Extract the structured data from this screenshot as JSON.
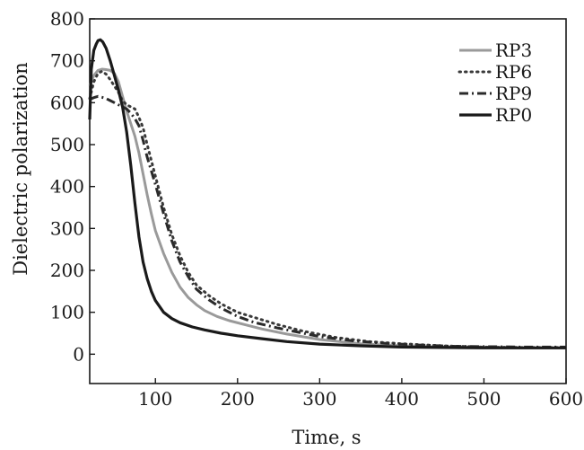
{
  "chart_data": {
    "type": "line",
    "title": "",
    "xlabel": "Time, s",
    "ylabel": "Dielectric polarization",
    "xlim": [
      20,
      600
    ],
    "ylim": [
      -70,
      800
    ],
    "x_ticks": [
      100,
      200,
      300,
      400,
      500,
      600
    ],
    "y_ticks": [
      0,
      100,
      200,
      300,
      400,
      500,
      600,
      700,
      800
    ],
    "grid": false,
    "legend_position": "top-right",
    "series": [
      {
        "name": "RP3",
        "style": "solid-gray",
        "color": "#9a9a9a",
        "x": [
          20,
          25,
          30,
          35,
          40,
          45,
          50,
          55,
          60,
          65,
          70,
          75,
          80,
          85,
          90,
          95,
          100,
          110,
          120,
          130,
          140,
          150,
          160,
          175,
          190,
          210,
          230,
          260,
          300,
          350,
          400,
          450,
          500,
          550,
          600
        ],
        "y": [
          640,
          665,
          677,
          680,
          679,
          677,
          670,
          650,
          615,
          580,
          550,
          520,
          480,
          430,
          380,
          335,
          295,
          240,
          195,
          160,
          135,
          118,
          104,
          90,
          80,
          70,
          60,
          48,
          35,
          25,
          20,
          17,
          16,
          15,
          15
        ]
      },
      {
        "name": "RP6",
        "style": "dotted",
        "color": "#3a3a3a",
        "x": [
          20,
          25,
          30,
          35,
          40,
          45,
          50,
          55,
          60,
          65,
          70,
          75,
          80,
          85,
          90,
          100,
          110,
          120,
          130,
          140,
          150,
          165,
          180,
          200,
          225,
          250,
          280,
          320,
          360,
          400,
          450,
          500,
          550,
          600
        ],
        "y": [
          610,
          650,
          670,
          675,
          668,
          655,
          640,
          625,
          605,
          595,
          590,
          585,
          565,
          540,
          500,
          425,
          350,
          285,
          235,
          195,
          165,
          140,
          120,
          100,
          85,
          70,
          55,
          40,
          30,
          25,
          20,
          17,
          16,
          16
        ]
      },
      {
        "name": "RP9",
        "style": "dash-dot",
        "color": "#2a2a2a",
        "x": [
          20,
          25,
          30,
          35,
          40,
          45,
          50,
          55,
          60,
          65,
          70,
          75,
          80,
          85,
          90,
          100,
          110,
          120,
          130,
          140,
          150,
          165,
          180,
          200,
          220,
          250,
          280,
          300,
          340,
          380,
          420,
          460,
          500,
          550,
          600
        ],
        "y": [
          608,
          612,
          615,
          613,
          610,
          605,
          600,
          595,
          590,
          585,
          575,
          562,
          545,
          510,
          470,
          405,
          335,
          270,
          220,
          185,
          155,
          130,
          110,
          90,
          76,
          62,
          50,
          42,
          32,
          26,
          22,
          19,
          18,
          17,
          17
        ]
      },
      {
        "name": "RP0",
        "style": "solid-black",
        "color": "#1a1a1a",
        "x": [
          20,
          22,
          25,
          28,
          30,
          33,
          36,
          40,
          45,
          50,
          55,
          60,
          65,
          70,
          75,
          80,
          85,
          90,
          95,
          100,
          110,
          120,
          130,
          145,
          160,
          180,
          200,
          230,
          260,
          300,
          350,
          400,
          450,
          500,
          550,
          600
        ],
        "y": [
          560,
          680,
          725,
          740,
          748,
          750,
          745,
          730,
          700,
          665,
          630,
          590,
          530,
          450,
          360,
          280,
          220,
          180,
          150,
          128,
          100,
          85,
          75,
          65,
          58,
          50,
          44,
          37,
          30,
          24,
          20,
          17,
          16,
          15,
          15,
          15
        ]
      }
    ]
  }
}
